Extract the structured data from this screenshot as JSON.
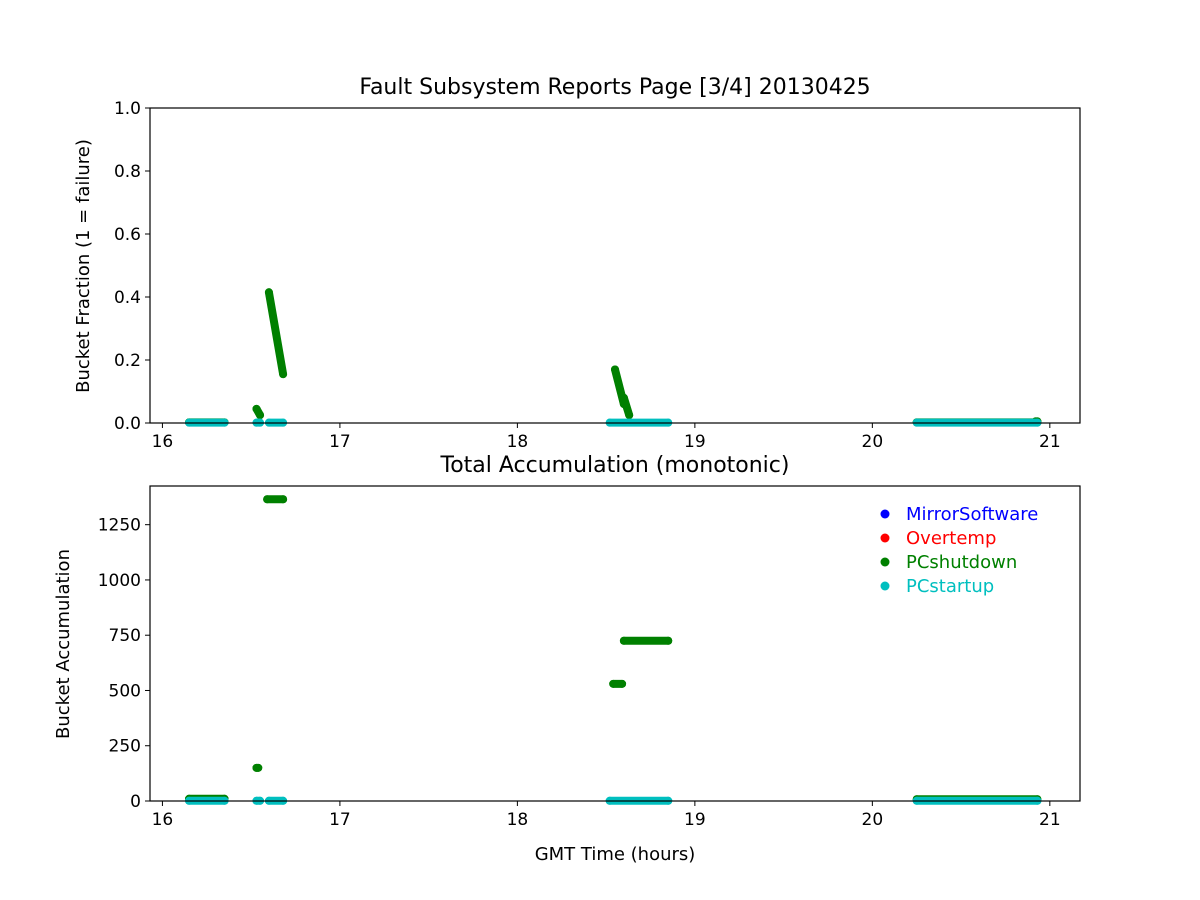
{
  "chart_data": [
    {
      "type": "scatter",
      "title": "Fault Subsystem Reports Page [3/4] 20130425",
      "xlabel": "",
      "ylabel": "Bucket Fraction (1 = failure)",
      "xlim": [
        15.93,
        21.17
      ],
      "ylim": [
        0,
        1.0
      ],
      "xticks": [
        "16",
        "17",
        "18",
        "19",
        "20",
        "21"
      ],
      "yticks": [
        "0.0",
        "0.2",
        "0.4",
        "0.6",
        "0.8",
        "1.0"
      ],
      "series": [
        {
          "name": "MirrorSoftware",
          "color": "#0000ff",
          "segments": []
        },
        {
          "name": "Overtemp",
          "color": "#ff0000",
          "segments": []
        },
        {
          "name": "PCshutdown",
          "color": "#008000",
          "segments": [
            [
              16.15,
              0.002,
              16.35,
              0.002
            ],
            [
              16.53,
              0.045,
              16.55,
              0.025
            ],
            [
              16.6,
              0.415,
              16.68,
              0.155
            ],
            [
              18.55,
              0.17,
              18.6,
              0.06
            ],
            [
              18.6,
              0.08,
              18.63,
              0.025
            ],
            [
              20.25,
              0.002,
              20.93,
              0.002
            ],
            [
              20.92,
              0.005,
              20.93,
              0.005
            ]
          ]
        },
        {
          "name": "PCstartup",
          "color": "#00bfbf",
          "segments": [
            [
              16.15,
              0.001,
              16.35,
              0.001
            ],
            [
              16.53,
              0.001,
              16.55,
              0.001
            ],
            [
              16.6,
              0.001,
              16.68,
              0.001
            ],
            [
              18.52,
              0.001,
              18.85,
              0.001
            ],
            [
              20.25,
              0.001,
              20.93,
              0.001
            ]
          ]
        }
      ]
    },
    {
      "type": "scatter",
      "title": "Total Accumulation (monotonic)",
      "xlabel": "GMT Time (hours)",
      "ylabel": "Bucket Accumulation",
      "xlim": [
        15.93,
        21.17
      ],
      "ylim": [
        0,
        1425
      ],
      "xticks": [
        "16",
        "17",
        "18",
        "19",
        "20",
        "21"
      ],
      "yticks": [
        "0",
        "250",
        "500",
        "750",
        "1000",
        "1250"
      ],
      "legend_position": "top-right",
      "series": [
        {
          "name": "MirrorSoftware",
          "color": "#0000ff",
          "segments": []
        },
        {
          "name": "Overtemp",
          "color": "#ff0000",
          "segments": []
        },
        {
          "name": "PCshutdown",
          "color": "#008000",
          "segments": [
            [
              16.15,
              10,
              16.35,
              10
            ],
            [
              16.53,
              150,
              16.54,
              150
            ],
            [
              16.59,
              1365,
              16.68,
              1365
            ],
            [
              18.54,
              530,
              18.59,
              530
            ],
            [
              18.6,
              725,
              18.85,
              725
            ],
            [
              20.25,
              8,
              20.93,
              8
            ]
          ]
        },
        {
          "name": "PCstartup",
          "color": "#00bfbf",
          "segments": [
            [
              16.15,
              1,
              16.35,
              1
            ],
            [
              16.53,
              1,
              16.55,
              1
            ],
            [
              16.6,
              1,
              16.68,
              1
            ],
            [
              18.52,
              1,
              18.85,
              1
            ],
            [
              20.25,
              1,
              20.93,
              1
            ]
          ]
        }
      ]
    }
  ]
}
